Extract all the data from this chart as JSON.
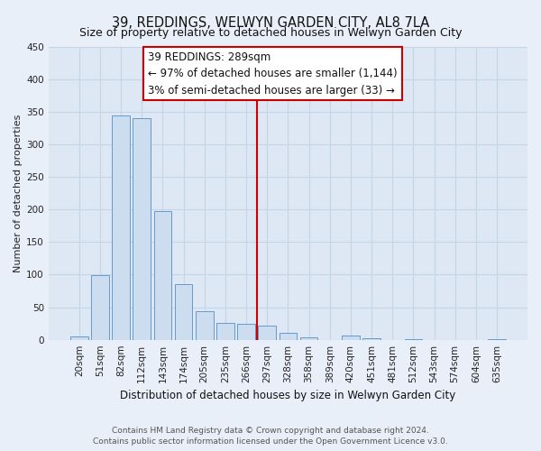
{
  "title": "39, REDDINGS, WELWYN GARDEN CITY, AL8 7LA",
  "subtitle": "Size of property relative to detached houses in Welwyn Garden City",
  "xlabel": "Distribution of detached houses by size in Welwyn Garden City",
  "ylabel": "Number of detached properties",
  "bar_labels": [
    "20sqm",
    "51sqm",
    "82sqm",
    "112sqm",
    "143sqm",
    "174sqm",
    "205sqm",
    "235sqm",
    "266sqm",
    "297sqm",
    "328sqm",
    "358sqm",
    "389sqm",
    "420sqm",
    "451sqm",
    "481sqm",
    "512sqm",
    "543sqm",
    "574sqm",
    "604sqm",
    "635sqm"
  ],
  "bar_values": [
    5,
    99,
    344,
    340,
    197,
    85,
    44,
    26,
    25,
    22,
    10,
    4,
    0,
    6,
    3,
    0,
    1,
    0,
    0,
    0,
    1
  ],
  "bar_color": "#ccddf0",
  "bar_edge_color": "#6699cc",
  "vline_x_index": 9,
  "vline_color": "#cc0000",
  "annotation_title": "39 REDDINGS: 289sqm",
  "annotation_line1": "← 97% of detached houses are smaller (1,144)",
  "annotation_line2": "3% of semi-detached houses are larger (33) →",
  "annotation_box_facecolor": "#ffffff",
  "annotation_box_edgecolor": "#cc0000",
  "ylim": [
    0,
    450
  ],
  "yticks": [
    0,
    50,
    100,
    150,
    200,
    250,
    300,
    350,
    400,
    450
  ],
  "footer1": "Contains HM Land Registry data © Crown copyright and database right 2024.",
  "footer2": "Contains public sector information licensed under the Open Government Licence v3.0.",
  "fig_bg_color": "#e8eff8",
  "plot_bg_color": "#dde8f4",
  "grid_color": "#c5d5e8",
  "title_fontsize": 10.5,
  "subtitle_fontsize": 9,
  "ylabel_fontsize": 8,
  "xlabel_fontsize": 8.5,
  "tick_fontsize": 7.5,
  "annotation_fontsize": 8.5,
  "footer_fontsize": 6.5
}
